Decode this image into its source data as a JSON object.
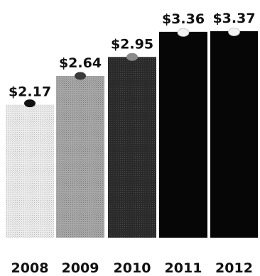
{
  "chart_data": {
    "type": "bar",
    "title": "",
    "xlabel": "",
    "ylabel": "",
    "categories": [
      "2008",
      "2009",
      "2010",
      "2011",
      "2012"
    ],
    "values": [
      2.17,
      2.64,
      2.95,
      3.36,
      3.37
    ],
    "value_labels": [
      "$2.17",
      "$2.64",
      "$2.95",
      "$3.36",
      "$3.37"
    ],
    "bar_colors": [
      "#e4e4e4",
      "#a9a9a9",
      "#2b2b2b",
      "#060606",
      "#060606"
    ],
    "marker_colors": [
      "#111111",
      "#3a3a3a",
      "#8a8a8a",
      "#f2f2f2",
      "#f2f2f2"
    ],
    "ylim": [
      0,
      3.37
    ],
    "grid": false,
    "legend": "none"
  }
}
